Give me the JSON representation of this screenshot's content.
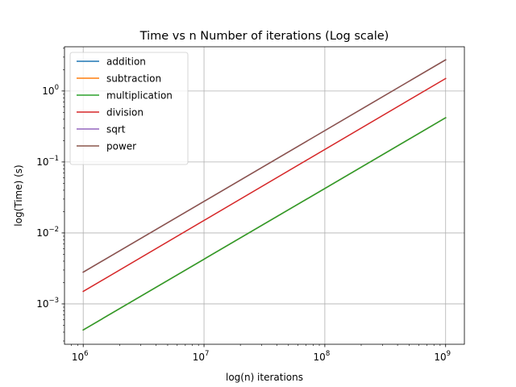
{
  "chart_data": {
    "type": "line",
    "title": "Time vs n Number of iterations (Log scale)",
    "xlabel": "log(n) iterations",
    "ylabel": "log(Time) (s)",
    "xscale": "log",
    "yscale": "log",
    "xlim": [
      700000,
      1430000000
    ],
    "ylim": [
      0.00027,
      4.2
    ],
    "x_ticks": [
      {
        "value": 1000000,
        "base": "10",
        "exp": "6"
      },
      {
        "value": 10000000,
        "base": "10",
        "exp": "7"
      },
      {
        "value": 100000000,
        "base": "10",
        "exp": "8"
      },
      {
        "value": 1000000000,
        "base": "10",
        "exp": "9"
      }
    ],
    "y_ticks": [
      {
        "value": 0.001,
        "base": "10",
        "exp": "−3"
      },
      {
        "value": 0.01,
        "base": "10",
        "exp": "−2"
      },
      {
        "value": 0.1,
        "base": "10",
        "exp": "−1"
      },
      {
        "value": 1,
        "base": "10",
        "exp": "0"
      }
    ],
    "grid": true,
    "legend_position": "top-left",
    "x": [
      1000000,
      1000000000
    ],
    "series": [
      {
        "name": "addition",
        "color": "#1f77b4",
        "values": [
          0.00043,
          0.42
        ]
      },
      {
        "name": "subtraction",
        "color": "#ff7f0e",
        "values": [
          0.00043,
          0.42
        ]
      },
      {
        "name": "multiplication",
        "color": "#2ca02c",
        "values": [
          0.00043,
          0.42
        ]
      },
      {
        "name": "division",
        "color": "#d62728",
        "values": [
          0.0015,
          1.5
        ]
      },
      {
        "name": "sqrt",
        "color": "#9467bd",
        "values": [
          0.0028,
          2.75
        ]
      },
      {
        "name": "power",
        "color": "#8c564b",
        "values": [
          0.0028,
          2.75
        ]
      }
    ]
  }
}
